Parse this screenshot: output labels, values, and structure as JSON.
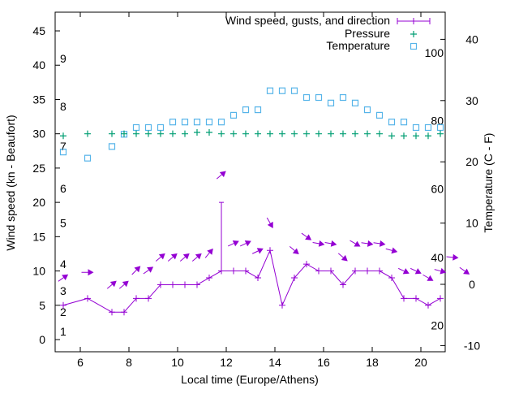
{
  "chart_data": {
    "type": "line",
    "title": "",
    "xlabel": "Local time (Europe/Athens)",
    "ylabel": "Wind speed (kn - Beaufort)",
    "y2label": "Temperature (C - F)",
    "xlim": [
      5.0,
      21.0
    ],
    "ylim": [
      -1.8,
      47.7
    ],
    "y2lim": [
      -11,
      44.4
    ],
    "x_ticks": [
      6,
      8,
      10,
      12,
      14,
      16,
      18,
      20
    ],
    "y_ticks": [
      0,
      5,
      10,
      15,
      20,
      25,
      30,
      35,
      40,
      45
    ],
    "y2_ticks": [
      -10,
      0,
      10,
      20,
      30,
      40
    ],
    "fahrenheit_labels": [
      {
        "label": "20",
        "celsius": -6.7
      },
      {
        "label": "40",
        "celsius": 4.4
      },
      {
        "label": "60",
        "celsius": 15.6
      },
      {
        "label": "80",
        "celsius": 26.7
      },
      {
        "label": "100",
        "celsius": 37.8
      }
    ],
    "beaufort_labels": [
      {
        "label": "1",
        "kn": 1.2
      },
      {
        "label": "2",
        "kn": 4.0
      },
      {
        "label": "3",
        "kn": 7.1
      },
      {
        "label": "4",
        "kn": 11.0
      },
      {
        "label": "5",
        "kn": 17.0
      },
      {
        "label": "6",
        "kn": 22.0
      },
      {
        "label": "7",
        "kn": 28.2
      },
      {
        "label": "8",
        "kn": 34.0
      },
      {
        "label": "9",
        "kn": 41.0
      }
    ],
    "legend": {
      "placement": "top-right",
      "entries": [
        "Wind speed, gusts, and direction",
        "Pressure",
        "Temperature"
      ]
    },
    "colors": {
      "wind": "#9400d3",
      "pressure": "#009e73",
      "temperature": "#56b4e9"
    },
    "x": [
      5.3,
      6.3,
      7.3,
      7.8,
      8.3,
      8.8,
      9.3,
      9.8,
      10.3,
      10.8,
      11.3,
      11.8,
      12.3,
      12.8,
      13.3,
      13.8,
      14.3,
      14.8,
      15.3,
      15.8,
      16.3,
      16.8,
      17.3,
      17.8,
      18.3,
      18.8,
      19.3,
      19.8,
      20.3,
      20.8
    ],
    "series": [
      {
        "name": "Wind speed, gusts, and direction",
        "axis": "y",
        "values": [
          5,
          6,
          4,
          4,
          6,
          6,
          8,
          8,
          8,
          8,
          9,
          10,
          10,
          10,
          9,
          13,
          5,
          9,
          11,
          10,
          10,
          8,
          10,
          10,
          10,
          9,
          6,
          6,
          5,
          6
        ],
        "gusts": [
          {
            "x": 11.8,
            "value": 20
          }
        ]
      },
      {
        "name": "Pressure",
        "axis": "y",
        "values": [
          29.7,
          30.0,
          30.0,
          30.0,
          30.0,
          30.0,
          30.0,
          30.0,
          30.0,
          30.2,
          30.2,
          30.0,
          30.0,
          30.0,
          30.0,
          30.0,
          30.0,
          30.0,
          30.0,
          30.0,
          30.0,
          30.0,
          30.0,
          30.0,
          30.0,
          29.7,
          29.7,
          29.7,
          29.7,
          30.0
        ]
      },
      {
        "name": "Temperature",
        "axis": "y2",
        "values": [
          21.6,
          20.6,
          22.5,
          24.5,
          25.6,
          25.6,
          25.6,
          26.5,
          26.5,
          26.5,
          26.5,
          26.5,
          27.6,
          28.5,
          28.5,
          31.6,
          31.6,
          31.6,
          30.5,
          30.5,
          29.6,
          30.5,
          29.6,
          28.5,
          27.6,
          26.5,
          26.5,
          25.6,
          25.6,
          25.6
        ]
      }
    ],
    "direction_arrows": [
      {
        "x": 5.3,
        "level": 9.0,
        "angle": -35
      },
      {
        "x": 6.3,
        "level": 9.8,
        "angle": 0
      },
      {
        "x": 7.3,
        "level": 8.0,
        "angle": -40
      },
      {
        "x": 7.8,
        "level": 8.0,
        "angle": -40
      },
      {
        "x": 8.3,
        "level": 10.1,
        "angle": -45
      },
      {
        "x": 8.8,
        "level": 10.1,
        "angle": -35
      },
      {
        "x": 9.3,
        "level": 12,
        "angle": -40
      },
      {
        "x": 9.8,
        "level": 12,
        "angle": -40
      },
      {
        "x": 10.3,
        "level": 12,
        "angle": -40
      },
      {
        "x": 10.8,
        "level": 12,
        "angle": -40
      },
      {
        "x": 11.3,
        "level": 12.6,
        "angle": -50
      },
      {
        "x": 11.8,
        "level": 24,
        "angle": -40
      },
      {
        "x": 12.3,
        "level": 14,
        "angle": -25
      },
      {
        "x": 12.8,
        "level": 14,
        "angle": -25
      },
      {
        "x": 13.3,
        "level": 12.9,
        "angle": -25
      },
      {
        "x": 13.8,
        "level": 17,
        "angle": 60
      },
      {
        "x": 14.8,
        "level": 13,
        "angle": 40
      },
      {
        "x": 15.3,
        "level": 15,
        "angle": 35
      },
      {
        "x": 15.8,
        "level": 14,
        "angle": 10
      },
      {
        "x": 16.3,
        "level": 14,
        "angle": 10
      },
      {
        "x": 16.8,
        "level": 12,
        "angle": 40
      },
      {
        "x": 17.3,
        "level": 14,
        "angle": 30
      },
      {
        "x": 17.8,
        "level": 14,
        "angle": 8
      },
      {
        "x": 18.3,
        "level": 14,
        "angle": 8
      },
      {
        "x": 18.8,
        "level": 13,
        "angle": 15
      },
      {
        "x": 19.3,
        "level": 10,
        "angle": 25
      },
      {
        "x": 19.8,
        "level": 10,
        "angle": 25
      },
      {
        "x": 20.3,
        "level": 9,
        "angle": 30
      },
      {
        "x": 20.8,
        "level": 10,
        "angle": 15
      },
      {
        "x": 21.3,
        "level": 12,
        "angle": 5
      },
      {
        "x": 21.8,
        "level": 10,
        "angle": 35
      }
    ]
  }
}
